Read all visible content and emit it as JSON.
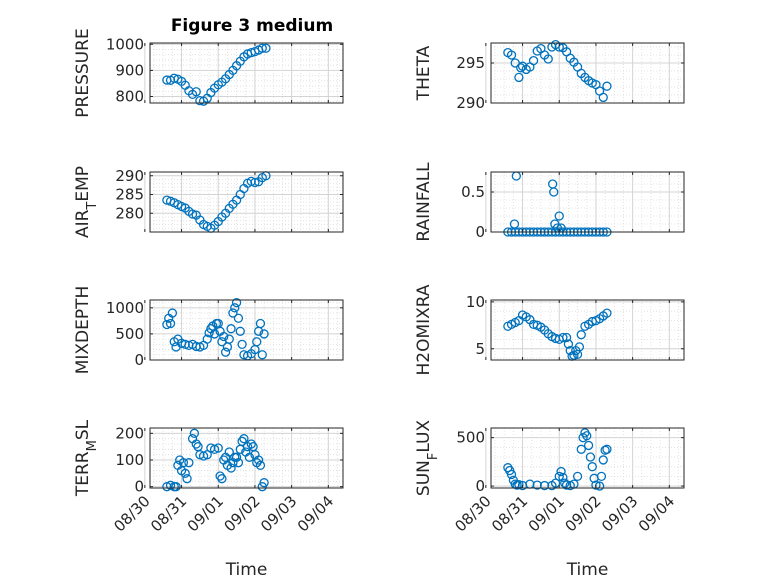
{
  "figure": {
    "title": "Figure 3 medium"
  },
  "chart_data": [
    {
      "type": "scatter",
      "title": "Figure 3 medium",
      "xlabel": "",
      "ylabel": "PRESSURE",
      "ylim": [
        775,
        1005
      ],
      "yticks": [
        800,
        900,
        1000
      ],
      "ytick_labels": [
        "800",
        "900",
        "1000"
      ],
      "grid": true,
      "series": [
        {
          "x": [
            0.6,
            0.7,
            0.8,
            0.9,
            1.0,
            1.1,
            1.2,
            1.3,
            1.4,
            1.5,
            1.6,
            1.7,
            1.8,
            1.9,
            2.0,
            2.1,
            2.2,
            2.3,
            2.4,
            2.5,
            2.6,
            2.7,
            2.8,
            2.9,
            3.0,
            3.1,
            3.2,
            3.3
          ],
          "y": [
            863,
            862,
            870,
            866,
            858,
            843,
            822,
            808,
            818,
            784,
            782,
            793,
            815,
            832,
            845,
            855,
            868,
            884,
            900,
            918,
            935,
            952,
            963,
            968,
            972,
            978,
            985,
            985
          ]
        }
      ]
    },
    {
      "type": "scatter",
      "xlabel": "",
      "ylabel": "THETA",
      "ylim": [
        290,
        297.5
      ],
      "yticks": [
        290,
        295
      ],
      "ytick_labels": [
        "290",
        "295"
      ],
      "grid": true,
      "series": [
        {
          "x": [
            0.6,
            0.7,
            0.8,
            0.9,
            0.95,
            1.0,
            1.1,
            1.2,
            1.3,
            1.4,
            1.5,
            1.6,
            1.7,
            1.8,
            1.9,
            2.0,
            2.1,
            2.2,
            2.3,
            2.4,
            2.5,
            2.6,
            2.7,
            2.8,
            2.9,
            3.0,
            3.1,
            3.2,
            3.3
          ],
          "y": [
            296.3,
            296.0,
            295.0,
            293.2,
            294.4,
            294.6,
            294.2,
            294.5,
            295.3,
            296.5,
            296.8,
            296.0,
            295.5,
            297.0,
            297.3,
            297.0,
            296.9,
            296.4,
            295.6,
            295.1,
            294.5,
            293.7,
            293.2,
            292.8,
            292.5,
            292.3,
            291.5,
            290.7,
            292.1
          ]
        }
      ]
    },
    {
      "type": "scatter",
      "xlabel": "",
      "ylabel": "AIR_TEMP",
      "ylabel_parts": [
        "AIR",
        "T",
        "EMP"
      ],
      "ylim": [
        275,
        291
      ],
      "yticks": [
        280,
        285,
        290
      ],
      "ytick_labels": [
        "280",
        "285",
        "290"
      ],
      "grid": true,
      "series": [
        {
          "x": [
            0.6,
            0.7,
            0.8,
            0.9,
            1.0,
            1.1,
            1.2,
            1.3,
            1.4,
            1.5,
            1.6,
            1.7,
            1.8,
            1.9,
            2.0,
            2.1,
            2.2,
            2.3,
            2.4,
            2.5,
            2.6,
            2.7,
            2.8,
            2.9,
            3.0,
            3.1,
            3.2,
            3.3
          ],
          "y": [
            283.5,
            283.2,
            282.8,
            282.3,
            281.8,
            281.4,
            280.5,
            279.8,
            279.5,
            278.2,
            277.0,
            276.5,
            276.0,
            276.8,
            277.8,
            279.0,
            280.0,
            281.3,
            282.4,
            283.5,
            285.0,
            286.6,
            288.0,
            288.5,
            288.2,
            288.4,
            289.5,
            290.0
          ]
        }
      ]
    },
    {
      "type": "scatter",
      "xlabel": "",
      "ylabel": "RAINFALL",
      "ylim": [
        0,
        0.75
      ],
      "yticks": [
        0,
        0.5
      ],
      "ytick_labels": [
        "0",
        "0.5"
      ],
      "grid": true,
      "series": [
        {
          "x": [
            0.6,
            0.7,
            0.8,
            0.9,
            1.0,
            1.1,
            1.2,
            1.3,
            1.4,
            1.5,
            1.6,
            1.7,
            1.8,
            1.9,
            2.0,
            2.1,
            2.2,
            2.3,
            2.4,
            2.5,
            2.6,
            2.7,
            2.8,
            2.9,
            3.0,
            3.1,
            3.2,
            3.3,
            0.78,
            0.83,
            1.82,
            1.85,
            1.88,
            1.95,
            2.0,
            2.05
          ],
          "y": [
            0,
            0,
            0,
            0,
            0,
            0,
            0,
            0,
            0,
            0,
            0,
            0,
            0,
            0,
            0,
            0,
            0,
            0,
            0,
            0,
            0,
            0,
            0,
            0,
            0,
            0,
            0,
            0,
            0.1,
            0.7,
            0.6,
            0.5,
            0.1,
            0.05,
            0.2,
            0.05
          ]
        }
      ]
    },
    {
      "type": "scatter",
      "xlabel": "",
      "ylabel": "MIXDEPTH",
      "ylim": [
        0,
        1150
      ],
      "yticks": [
        0,
        500,
        1000
      ],
      "ytick_labels": [
        "0",
        "500",
        "1000"
      ],
      "grid": true,
      "series": [
        {
          "x": [
            0.6,
            0.65,
            0.7,
            0.75,
            0.8,
            0.85,
            0.9,
            1.0,
            1.1,
            1.2,
            1.3,
            1.4,
            1.5,
            1.6,
            1.7,
            1.75,
            1.8,
            1.85,
            1.9,
            1.95,
            2.0,
            2.05,
            2.1,
            2.15,
            2.2,
            2.25,
            2.3,
            2.35,
            2.4,
            2.45,
            2.5,
            2.55,
            2.6,
            2.65,
            2.7,
            2.8,
            2.9,
            3.0,
            3.05,
            3.1,
            3.15,
            3.2,
            3.25
          ],
          "y": [
            680,
            800,
            700,
            900,
            350,
            250,
            400,
            320,
            300,
            280,
            300,
            260,
            250,
            280,
            400,
            520,
            600,
            650,
            500,
            700,
            700,
            550,
            350,
            450,
            150,
            250,
            400,
            600,
            900,
            1000,
            1100,
            800,
            550,
            300,
            100,
            80,
            120,
            200,
            350,
            550,
            700,
            100,
            500
          ]
        }
      ]
    },
    {
      "type": "scatter",
      "xlabel": "",
      "ylabel": "H2OMIXRA",
      "ylim": [
        3.8,
        10.2
      ],
      "yticks": [
        5,
        10
      ],
      "ytick_labels": [
        "5",
        "10"
      ],
      "grid": true,
      "series": [
        {
          "x": [
            0.6,
            0.7,
            0.8,
            0.9,
            1.0,
            1.1,
            1.2,
            1.3,
            1.4,
            1.5,
            1.6,
            1.7,
            1.8,
            1.9,
            2.0,
            2.1,
            2.2,
            2.25,
            2.3,
            2.35,
            2.4,
            2.45,
            2.5,
            2.55,
            2.6,
            2.7,
            2.8,
            2.9,
            3.0,
            3.1,
            3.2,
            3.3
          ],
          "y": [
            7.4,
            7.6,
            7.8,
            8.0,
            8.6,
            8.4,
            8.1,
            7.6,
            7.5,
            7.3,
            7.0,
            6.6,
            6.3,
            6.1,
            6.0,
            6.2,
            6.2,
            5.5,
            4.8,
            4.2,
            4.3,
            4.8,
            4.4,
            5.2,
            6.5,
            7.4,
            7.6,
            7.9,
            8.0,
            8.2,
            8.5,
            8.8
          ]
        }
      ]
    },
    {
      "type": "scatter",
      "xlabel": "Time",
      "ylabel": "TERR_MSL",
      "ylabel_parts": [
        "TERR",
        "M",
        "SL"
      ],
      "ylim": [
        -5,
        220
      ],
      "yticks": [
        0,
        100,
        200
      ],
      "ytick_labels": [
        "0",
        "100",
        "200"
      ],
      "xticks": [
        0,
        1,
        2,
        3,
        4,
        5
      ],
      "xtick_labels": [
        "08/30",
        "08/31",
        "09/01",
        "09/02",
        "09/03",
        "09/04"
      ],
      "grid": true,
      "series": [
        {
          "x": [
            0.6,
            0.7,
            0.8,
            0.85,
            0.9,
            0.95,
            1.0,
            1.05,
            1.1,
            1.15,
            1.2,
            1.3,
            1.35,
            1.4,
            1.45,
            1.5,
            1.6,
            1.7,
            1.8,
            1.9,
            2.0,
            2.05,
            2.1,
            2.15,
            2.2,
            2.25,
            2.3,
            2.35,
            2.4,
            2.45,
            2.5,
            2.55,
            2.6,
            2.65,
            2.7,
            2.75,
            2.8,
            2.85,
            2.9,
            2.95,
            3.0,
            3.05,
            3.1,
            3.15,
            3.2,
            3.25
          ],
          "y": [
            0,
            5,
            0,
            0,
            80,
            100,
            60,
            90,
            50,
            30,
            90,
            180,
            200,
            160,
            150,
            120,
            115,
            120,
            145,
            140,
            145,
            40,
            30,
            100,
            110,
            80,
            130,
            70,
            90,
            110,
            110,
            90,
            140,
            170,
            180,
            130,
            150,
            110,
            160,
            150,
            120,
            90,
            100,
            80,
            0,
            15
          ]
        }
      ]
    },
    {
      "type": "scatter",
      "xlabel": "Time",
      "ylabel": "SUN_FLUX",
      "ylabel_parts": [
        "SUN",
        "F",
        "LUX"
      ],
      "ylim": [
        -20,
        600
      ],
      "yticks": [
        0,
        500
      ],
      "ytick_labels": [
        "0",
        "500"
      ],
      "xticks": [
        0,
        1,
        2,
        3,
        4,
        5
      ],
      "xtick_labels": [
        "08/30",
        "08/31",
        "09/01",
        "09/02",
        "09/03",
        "09/04"
      ],
      "grid": true,
      "series": [
        {
          "x": [
            0.6,
            0.65,
            0.7,
            0.75,
            0.8,
            0.85,
            0.9,
            1.0,
            1.2,
            1.4,
            1.6,
            1.8,
            1.9,
            2.0,
            2.05,
            2.1,
            2.15,
            2.2,
            2.3,
            2.4,
            2.5,
            2.6,
            2.65,
            2.7,
            2.75,
            2.8,
            2.85,
            2.9,
            2.95,
            3.0,
            3.1,
            3.15,
            3.2,
            3.25,
            3.3
          ],
          "y": [
            190,
            160,
            120,
            60,
            20,
            10,
            15,
            5,
            20,
            10,
            5,
            5,
            30,
            100,
            150,
            90,
            30,
            10,
            5,
            20,
            100,
            380,
            500,
            550,
            520,
            420,
            300,
            200,
            80,
            10,
            0,
            100,
            270,
            370,
            380
          ]
        }
      ]
    }
  ]
}
